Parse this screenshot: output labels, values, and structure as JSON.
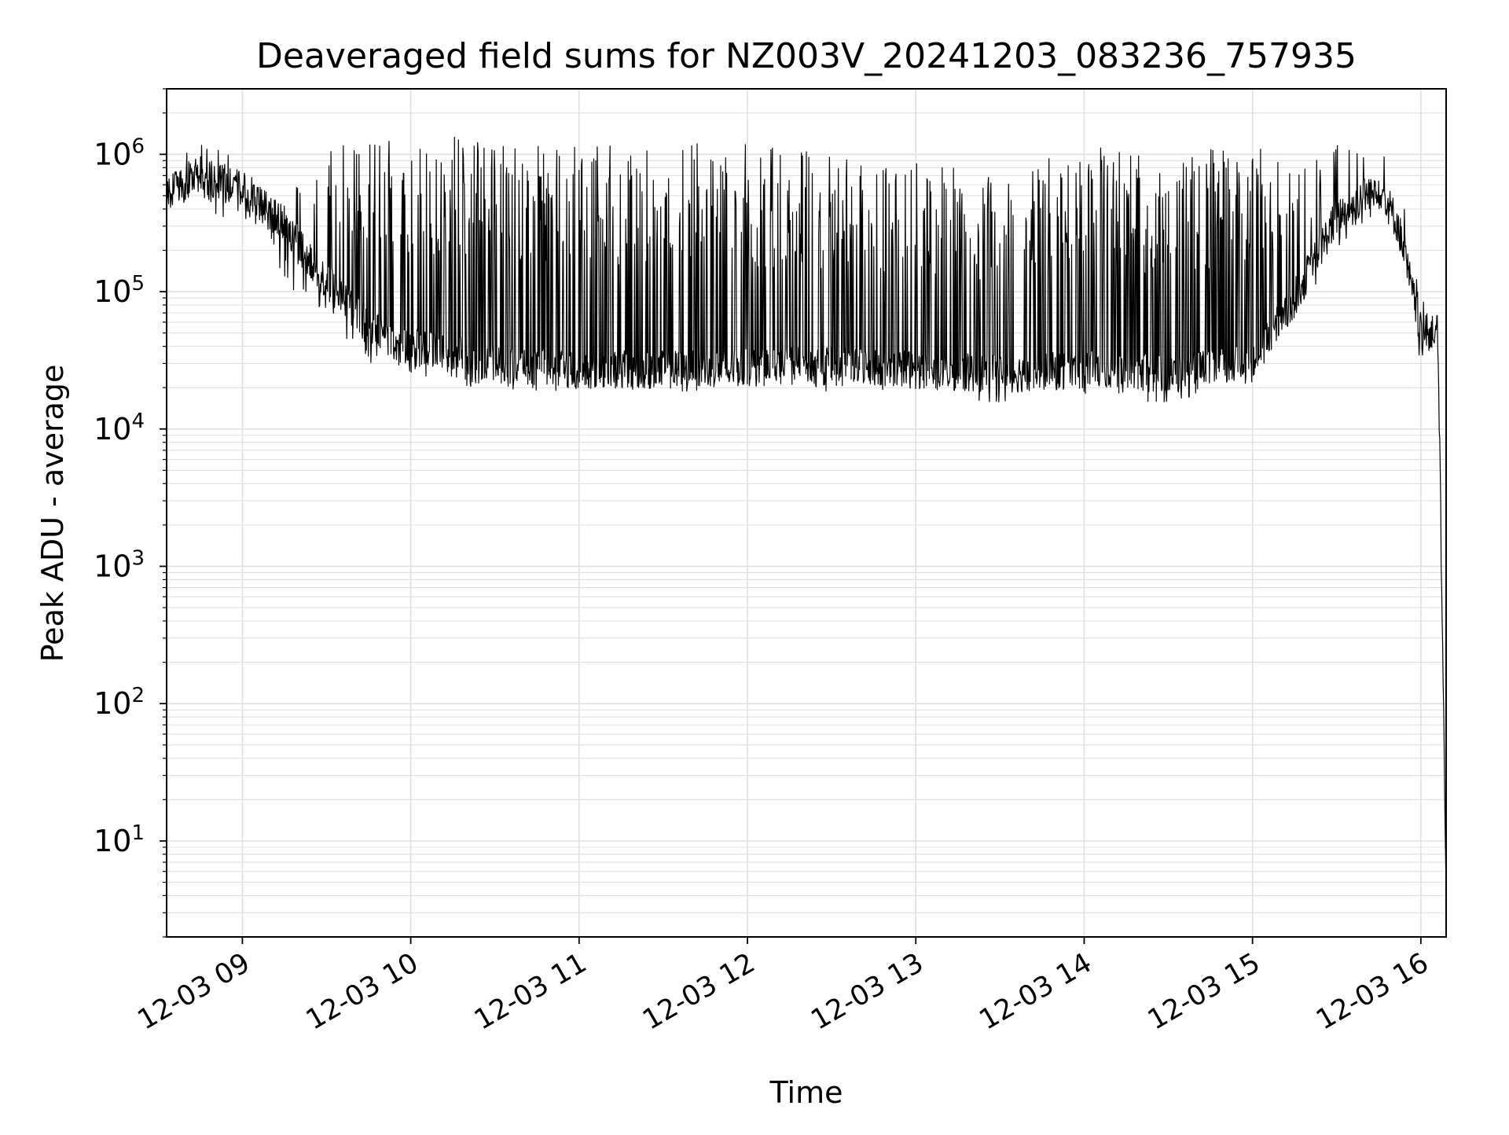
{
  "chart_data": {
    "type": "line",
    "title": "Deaveraged field sums for NZ003V_20241203_083236_757935",
    "xlabel": "Time",
    "ylabel": "Peak ADU - average",
    "yscale": "log",
    "grid": true,
    "line_color": "#000000",
    "grid_color": "#e0e0e0",
    "xlim": [
      "2024-12-03 08:33",
      "2024-12-03 16:09"
    ],
    "ylim": [
      2,
      3000000
    ],
    "x_ticks": [
      "12-03 09",
      "12-03 10",
      "12-03 11",
      "12-03 12",
      "12-03 13",
      "12-03 14",
      "12-03 15",
      "12-03 16"
    ],
    "x_tick_times": [
      "2024-12-03 09:00",
      "2024-12-03 10:00",
      "2024-12-03 11:00",
      "2024-12-03 12:00",
      "2024-12-03 13:00",
      "2024-12-03 14:00",
      "2024-12-03 15:00",
      "2024-12-03 16:00"
    ],
    "y_ticks": [
      {
        "value": 10,
        "base": "10",
        "exp": "1"
      },
      {
        "value": 100,
        "base": "10",
        "exp": "2"
      },
      {
        "value": 1000,
        "base": "10",
        "exp": "3"
      },
      {
        "value": 10000,
        "base": "10",
        "exp": "4"
      },
      {
        "value": 100000,
        "base": "10",
        "exp": "5"
      },
      {
        "value": 1000000,
        "base": "10",
        "exp": "6"
      }
    ],
    "series": [
      {
        "x": [
          "2024-12-03 08:33",
          "2024-12-03 08:45",
          "2024-12-03 09:00",
          "2024-12-03 09:15",
          "2024-12-03 09:30",
          "2024-12-03 09:45",
          "2024-12-03 10:00",
          "2024-12-03 10:15",
          "2024-12-03 10:30",
          "2024-12-03 10:45",
          "2024-12-03 11:00",
          "2024-12-03 11:30",
          "2024-12-03 12:00",
          "2024-12-03 12:30",
          "2024-12-03 13:00",
          "2024-12-03 13:30",
          "2024-12-03 14:00",
          "2024-12-03 14:30",
          "2024-12-03 15:00",
          "2024-12-03 15:15",
          "2024-12-03 15:30",
          "2024-12-03 15:45",
          "2024-12-03 15:52",
          "2024-12-03 16:00",
          "2024-12-03 16:04",
          "2024-12-03 16:06",
          "2024-12-03 16:07",
          "2024-12-03 16:09"
        ],
        "base": [
          550000,
          700000,
          550000,
          300000,
          120000,
          55000,
          40000,
          35000,
          30000,
          28000,
          27000,
          27000,
          28000,
          30000,
          27000,
          25000,
          27000,
          25000,
          30000,
          90000,
          350000,
          600000,
          300000,
          50000,
          50000,
          50000,
          3000,
          4
        ],
        "peak": [
          800000,
          1300000,
          900000,
          500000,
          1200000,
          1300000,
          1300000,
          1400000,
          1300000,
          1300000,
          1250000,
          1200000,
          1200000,
          1000000,
          900000,
          700000,
          1200000,
          900000,
          1300000,
          700000,
          1200000,
          1500000,
          700000,
          100000,
          70000,
          60000,
          3000,
          4
        ],
        "dip": [
          400000,
          250000,
          300000,
          120000,
          60000,
          30000,
          25000,
          22000,
          18000,
          18000,
          20000,
          18000,
          20000,
          18000,
          20000,
          15000,
          18000,
          15000,
          25000,
          60000,
          200000,
          400000,
          200000,
          28000,
          30000,
          30000,
          3000,
          4
        ]
      }
    ]
  }
}
